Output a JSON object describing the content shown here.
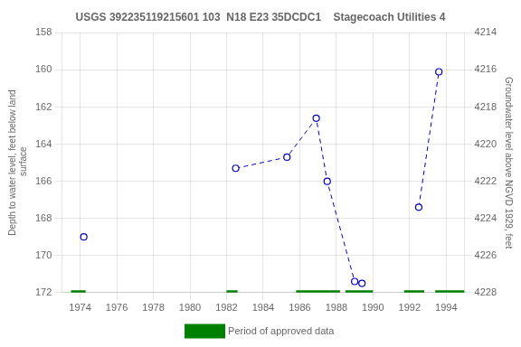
{
  "chart_data": {
    "type": "line",
    "title": "USGS 392235119215601 103  N18 E23 35DCDC1    Stagecoach Utilities 4",
    "ylabel": "Depth to water level, feet below land\n surface",
    "y2label": "Groundwater level above NGVD 1929, feet",
    "xlim": [
      1973,
      1995
    ],
    "xticks": [
      1974,
      1976,
      1978,
      1980,
      1982,
      1984,
      1986,
      1988,
      1990,
      1992,
      1994
    ],
    "ylim": [
      172,
      158
    ],
    "yticks": [
      158,
      160,
      162,
      164,
      166,
      168,
      170,
      172
    ],
    "y2lim": [
      4228,
      4214
    ],
    "y2ticks": [
      4214,
      4216,
      4218,
      4220,
      4222,
      4224,
      4226,
      4228
    ],
    "grid": true,
    "legend": "bottom",
    "series": [
      {
        "x": [
          1974.2
        ],
        "values": [
          169.0
        ],
        "color": "#0000bb",
        "line_style": "dashed",
        "marker": "circle"
      },
      {
        "x": [
          1982.5,
          1985.3,
          1986.9,
          1987.5,
          1989.0,
          1989.4
        ],
        "values": [
          165.3,
          164.7,
          162.6,
          166.0,
          171.4,
          171.5
        ],
        "color": "#0000bb",
        "line_style": "dashed",
        "marker": "circle"
      },
      {
        "x": [
          1992.5,
          1993.6
        ],
        "values": [
          167.4,
          160.1
        ],
        "color": "#0000bb",
        "line_style": "dashed",
        "marker": "circle"
      },
      {
        "name": "Period of approved data",
        "type": "bar",
        "orientation": "horizontal",
        "color": "#008000",
        "ranges": [
          [
            1973.5,
            1974.3
          ],
          [
            1982.0,
            1982.6
          ],
          [
            1985.8,
            1988.2
          ],
          [
            1988.5,
            1990.0
          ],
          [
            1991.7,
            1992.8
          ],
          [
            1993.4,
            1995.0
          ]
        ],
        "y": 172.0
      }
    ]
  }
}
